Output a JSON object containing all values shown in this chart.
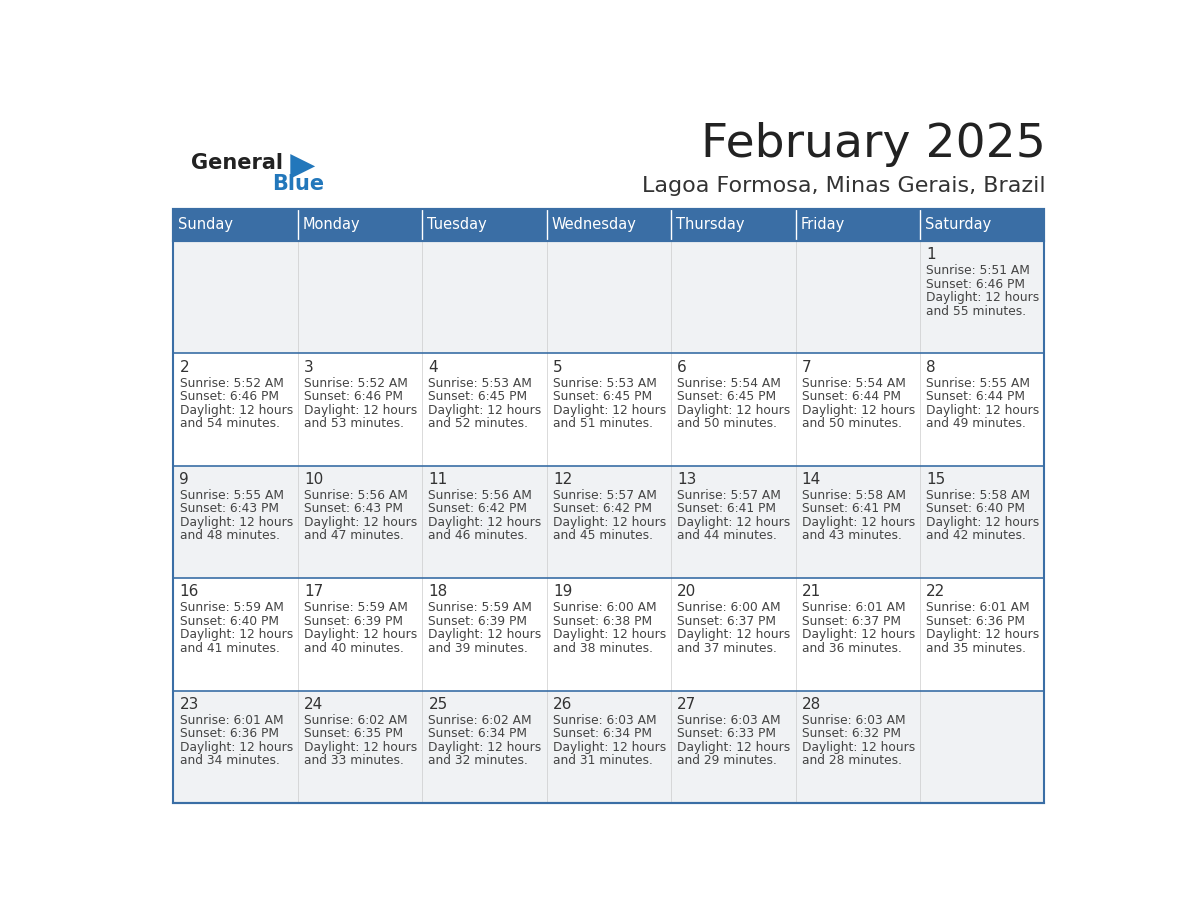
{
  "title": "February 2025",
  "subtitle": "Lagoa Formosa, Minas Gerais, Brazil",
  "days_of_week": [
    "Sunday",
    "Monday",
    "Tuesday",
    "Wednesday",
    "Thursday",
    "Friday",
    "Saturday"
  ],
  "header_bg": "#3a6ea5",
  "header_text_color": "#ffffff",
  "cell_bg_gray": "#eeeff1",
  "cell_bg_white": "#ffffff",
  "border_color": "#3a6ea5",
  "text_color": "#444444",
  "day_number_color": "#333333",
  "title_color": "#222222",
  "subtitle_color": "#333333",
  "general_color": "#222222",
  "blue_color": "#2277bb",
  "triangle_color": "#2277bb",
  "calendar_data": [
    [
      {
        "day": 0,
        "sunrise": "",
        "sunset": "",
        "daylight": ""
      },
      {
        "day": 0,
        "sunrise": "",
        "sunset": "",
        "daylight": ""
      },
      {
        "day": 0,
        "sunrise": "",
        "sunset": "",
        "daylight": ""
      },
      {
        "day": 0,
        "sunrise": "",
        "sunset": "",
        "daylight": ""
      },
      {
        "day": 0,
        "sunrise": "",
        "sunset": "",
        "daylight": ""
      },
      {
        "day": 0,
        "sunrise": "",
        "sunset": "",
        "daylight": ""
      },
      {
        "day": 1,
        "sunrise": "5:51 AM",
        "sunset": "6:46 PM",
        "daylight": "12 hours and 55 minutes."
      }
    ],
    [
      {
        "day": 2,
        "sunrise": "5:52 AM",
        "sunset": "6:46 PM",
        "daylight": "12 hours and 54 minutes."
      },
      {
        "day": 3,
        "sunrise": "5:52 AM",
        "sunset": "6:46 PM",
        "daylight": "12 hours and 53 minutes."
      },
      {
        "day": 4,
        "sunrise": "5:53 AM",
        "sunset": "6:45 PM",
        "daylight": "12 hours and 52 minutes."
      },
      {
        "day": 5,
        "sunrise": "5:53 AM",
        "sunset": "6:45 PM",
        "daylight": "12 hours and 51 minutes."
      },
      {
        "day": 6,
        "sunrise": "5:54 AM",
        "sunset": "6:45 PM",
        "daylight": "12 hours and 50 minutes."
      },
      {
        "day": 7,
        "sunrise": "5:54 AM",
        "sunset": "6:44 PM",
        "daylight": "12 hours and 50 minutes."
      },
      {
        "day": 8,
        "sunrise": "5:55 AM",
        "sunset": "6:44 PM",
        "daylight": "12 hours and 49 minutes."
      }
    ],
    [
      {
        "day": 9,
        "sunrise": "5:55 AM",
        "sunset": "6:43 PM",
        "daylight": "12 hours and 48 minutes."
      },
      {
        "day": 10,
        "sunrise": "5:56 AM",
        "sunset": "6:43 PM",
        "daylight": "12 hours and 47 minutes."
      },
      {
        "day": 11,
        "sunrise": "5:56 AM",
        "sunset": "6:42 PM",
        "daylight": "12 hours and 46 minutes."
      },
      {
        "day": 12,
        "sunrise": "5:57 AM",
        "sunset": "6:42 PM",
        "daylight": "12 hours and 45 minutes."
      },
      {
        "day": 13,
        "sunrise": "5:57 AM",
        "sunset": "6:41 PM",
        "daylight": "12 hours and 44 minutes."
      },
      {
        "day": 14,
        "sunrise": "5:58 AM",
        "sunset": "6:41 PM",
        "daylight": "12 hours and 43 minutes."
      },
      {
        "day": 15,
        "sunrise": "5:58 AM",
        "sunset": "6:40 PM",
        "daylight": "12 hours and 42 minutes."
      }
    ],
    [
      {
        "day": 16,
        "sunrise": "5:59 AM",
        "sunset": "6:40 PM",
        "daylight": "12 hours and 41 minutes."
      },
      {
        "day": 17,
        "sunrise": "5:59 AM",
        "sunset": "6:39 PM",
        "daylight": "12 hours and 40 minutes."
      },
      {
        "day": 18,
        "sunrise": "5:59 AM",
        "sunset": "6:39 PM",
        "daylight": "12 hours and 39 minutes."
      },
      {
        "day": 19,
        "sunrise": "6:00 AM",
        "sunset": "6:38 PM",
        "daylight": "12 hours and 38 minutes."
      },
      {
        "day": 20,
        "sunrise": "6:00 AM",
        "sunset": "6:37 PM",
        "daylight": "12 hours and 37 minutes."
      },
      {
        "day": 21,
        "sunrise": "6:01 AM",
        "sunset": "6:37 PM",
        "daylight": "12 hours and 36 minutes."
      },
      {
        "day": 22,
        "sunrise": "6:01 AM",
        "sunset": "6:36 PM",
        "daylight": "12 hours and 35 minutes."
      }
    ],
    [
      {
        "day": 23,
        "sunrise": "6:01 AM",
        "sunset": "6:36 PM",
        "daylight": "12 hours and 34 minutes."
      },
      {
        "day": 24,
        "sunrise": "6:02 AM",
        "sunset": "6:35 PM",
        "daylight": "12 hours and 33 minutes."
      },
      {
        "day": 25,
        "sunrise": "6:02 AM",
        "sunset": "6:34 PM",
        "daylight": "12 hours and 32 minutes."
      },
      {
        "day": 26,
        "sunrise": "6:03 AM",
        "sunset": "6:34 PM",
        "daylight": "12 hours and 31 minutes."
      },
      {
        "day": 27,
        "sunrise": "6:03 AM",
        "sunset": "6:33 PM",
        "daylight": "12 hours and 29 minutes."
      },
      {
        "day": 28,
        "sunrise": "6:03 AM",
        "sunset": "6:32 PM",
        "daylight": "12 hours and 28 minutes."
      },
      {
        "day": 0,
        "sunrise": "",
        "sunset": "",
        "daylight": ""
      }
    ]
  ]
}
